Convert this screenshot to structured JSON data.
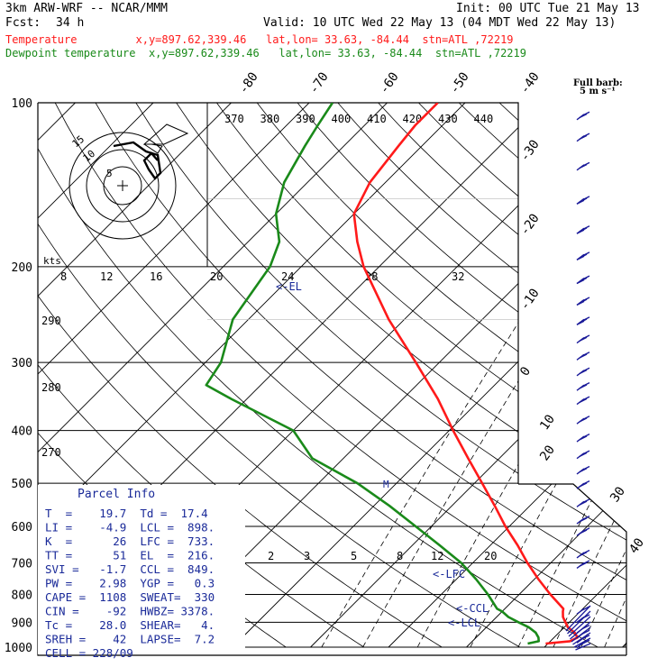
{
  "header": {
    "model": "3km ARW-WRF -- NCAR/MMM",
    "init": "Init: 00 UTC Tue 21 May 13",
    "fcst_label": "Fcst:",
    "fcst_value": "34 h",
    "valid": "Valid: 10 UTC Wed 22 May 13 (04 MDT Wed 22 May 13)",
    "temp_line": "Temperature         x,y=897.62,339.46   lat,lon= 33.63, -84.44  stn=ATL ,72219",
    "dew_line": "Dewpoint temperature  x,y=897.62,339.46   lat,lon= 33.63, -84.44  stn=ATL ,72219"
  },
  "colors": {
    "temperature": "#ff1a1a",
    "dewpoint": "#1a8a1a",
    "barbs": "#1a1a99",
    "params": "#1a2a99"
  },
  "barb_legend": {
    "line1": "Full barb:",
    "line2": "5 m s⁻¹"
  },
  "hodograph": {
    "unit": "kts",
    "ring_labels": [
      "5",
      "10",
      "15"
    ]
  },
  "parcel": {
    "title": "Parcel Info",
    "rows": [
      "T  =    19.7  Td =  17.4",
      "LI =    -4.9  LCL =  898.",
      "K  =      26  LFC =  733.",
      "TT =      51  EL  =  216.",
      "SVI =   -1.7  CCL =  849.",
      "PW =    2.98  YGP =   0.3",
      "CAPE =  1108  SWEAT=  330",
      "CIN =    -92  HWBZ= 3378.",
      "Tc =    28.0  SHEAR=   4.",
      "SREH =    42  LAPSE=  7.2",
      "CELL = 228/09"
    ]
  },
  "level_markers": {
    "el": "<-EL",
    "lfc": "<-LFC",
    "ccl": "<-CCL",
    "lcl": "<-LCL",
    "m": "M"
  },
  "chart_data": {
    "type": "line",
    "title": "",
    "pressure_ticks": [
      100,
      200,
      300,
      400,
      500,
      600,
      700,
      800,
      900,
      1000
    ],
    "pressure_range": [
      100,
      1000
    ],
    "isotherm_labels": [
      "-80",
      "-70",
      "-60",
      "-50",
      "-40",
      "-30",
      "-20",
      "-10",
      "0",
      "10",
      "20",
      "30",
      "40"
    ],
    "theta_e_labels": [
      "370",
      "380",
      "390",
      "400",
      "410",
      "420",
      "430",
      "440"
    ],
    "mixing_ratio_labels": [
      "8",
      "12",
      "16",
      "20",
      "24",
      "28",
      "32"
    ],
    "mixing_ratio_labels_low": [
      "2",
      "3",
      "5",
      "8",
      "12",
      "20"
    ],
    "dry_adiabat_labels": [
      "290",
      "280",
      "270"
    ],
    "series": [
      {
        "name": "Temperature",
        "pressure_hpa": [
          985,
          975,
          960,
          940,
          920,
          900,
          880,
          860,
          850,
          800,
          750,
          700,
          650,
          600,
          550,
          500,
          450,
          400,
          350,
          300,
          250,
          200,
          180,
          160,
          140,
          120,
          110,
          100
        ],
        "temperature_c": [
          19.7,
          22.5,
          23.0,
          22.0,
          20.5,
          19.5,
          18.5,
          17.8,
          17.5,
          14.0,
          10.5,
          7.0,
          3.5,
          -0.5,
          -4.5,
          -9.0,
          -14.0,
          -19.5,
          -25.5,
          -33.0,
          -42.0,
          -52.0,
          -56.0,
          -60.0,
          -62.0,
          -63.0,
          -63.5,
          -63.5
        ]
      },
      {
        "name": "Dewpoint temperature",
        "pressure_hpa": [
          985,
          975,
          960,
          940,
          920,
          900,
          880,
          860,
          850,
          800,
          750,
          700,
          650,
          600,
          550,
          500,
          450,
          400,
          350,
          330,
          300,
          250,
          200,
          180,
          160,
          140,
          120,
          110,
          100
        ],
        "temperature_c": [
          17.4,
          18.5,
          18.0,
          17.0,
          15.5,
          13.5,
          11.5,
          10.0,
          9.0,
          6.0,
          2.5,
          -1.5,
          -6.5,
          -12.0,
          -18.0,
          -25.0,
          -34.0,
          -40.0,
          -52.0,
          -57.0,
          -58.0,
          -62.0,
          -64.0,
          -66.0,
          -70.0,
          -73.0,
          -75.0,
          -76.0,
          -77.0
        ]
      }
    ],
    "wind_barbs": [
      {
        "pressure_hpa": 980,
        "speed_ms": 5
      },
      {
        "pressure_hpa": 960,
        "speed_ms": 5
      },
      {
        "pressure_hpa": 940,
        "speed_ms": 5
      },
      {
        "pressure_hpa": 920,
        "speed_ms": 5
      },
      {
        "pressure_hpa": 880,
        "speed_ms": 5
      },
      {
        "pressure_hpa": 850,
        "speed_ms": 5
      },
      {
        "pressure_hpa": 700,
        "speed_ms": 10
      },
      {
        "pressure_hpa": 670,
        "speed_ms": 10
      },
      {
        "pressure_hpa": 610,
        "speed_ms": 10
      },
      {
        "pressure_hpa": 580,
        "speed_ms": 10
      },
      {
        "pressure_hpa": 540,
        "speed_ms": 10
      },
      {
        "pressure_hpa": 500,
        "speed_ms": 10
      },
      {
        "pressure_hpa": 470,
        "speed_ms": 10
      },
      {
        "pressure_hpa": 440,
        "speed_ms": 10
      },
      {
        "pressure_hpa": 410,
        "speed_ms": 10
      },
      {
        "pressure_hpa": 380,
        "speed_ms": 10
      },
      {
        "pressure_hpa": 350,
        "speed_ms": 10
      },
      {
        "pressure_hpa": 330,
        "speed_ms": 10
      },
      {
        "pressure_hpa": 310,
        "speed_ms": 10
      },
      {
        "pressure_hpa": 290,
        "speed_ms": 10
      },
      {
        "pressure_hpa": 270,
        "speed_ms": 10
      },
      {
        "pressure_hpa": 250,
        "speed_ms": 15
      },
      {
        "pressure_hpa": 230,
        "speed_ms": 15
      },
      {
        "pressure_hpa": 210,
        "speed_ms": 15
      },
      {
        "pressure_hpa": 190,
        "speed_ms": 15
      },
      {
        "pressure_hpa": 170,
        "speed_ms": 15
      },
      {
        "pressure_hpa": 150,
        "speed_ms": 15
      },
      {
        "pressure_hpa": 130,
        "speed_ms": 10
      },
      {
        "pressure_hpa": 115,
        "speed_ms": 10
      },
      {
        "pressure_hpa": 105,
        "speed_ms": 10
      }
    ]
  }
}
